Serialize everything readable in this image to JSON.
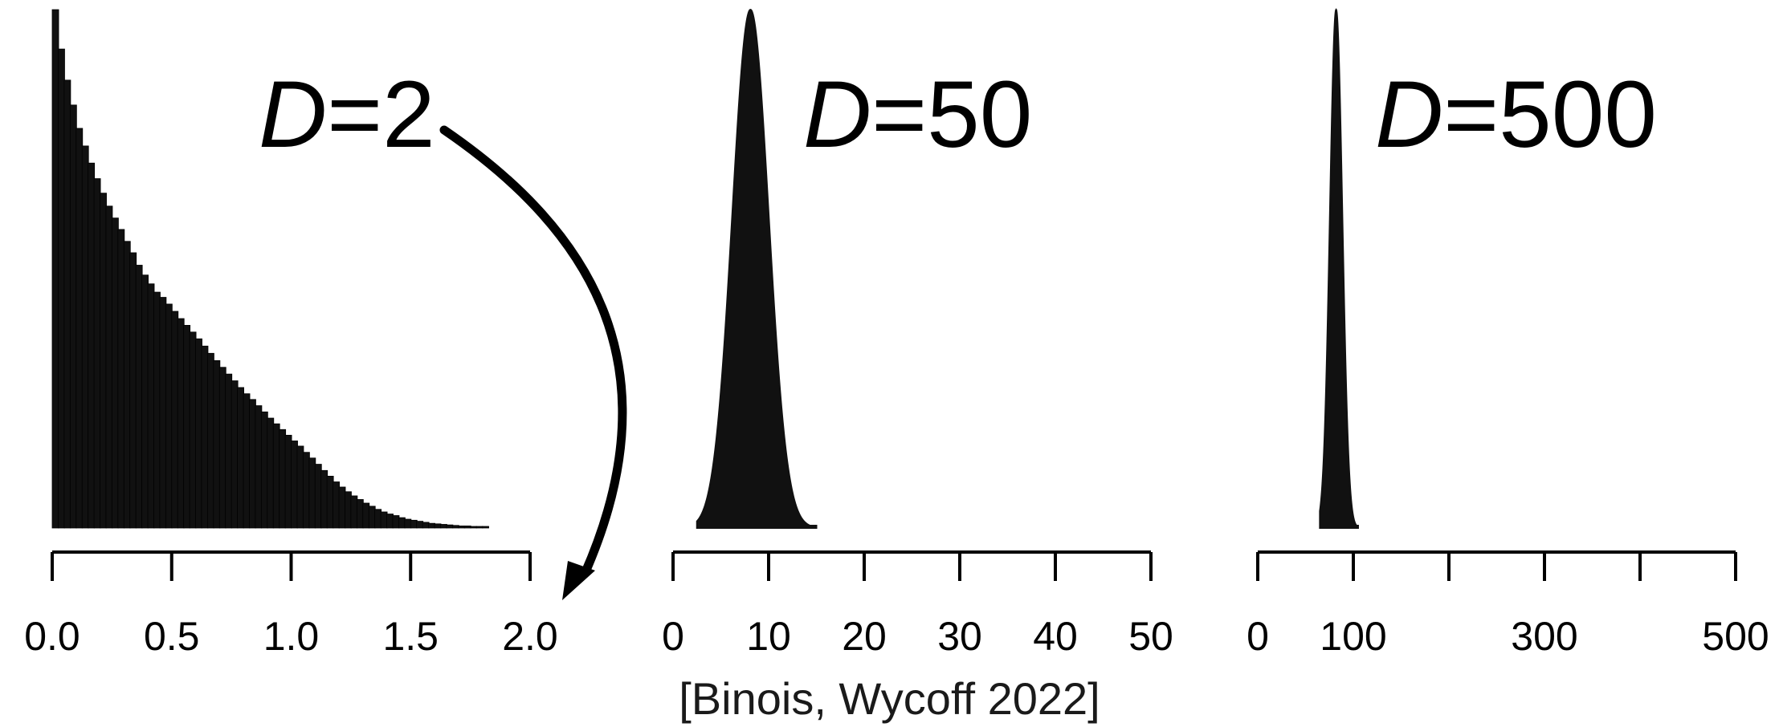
{
  "citation": "[Binois, Wycoff 2022]",
  "colors": {
    "bars": "#111111",
    "axis": "#000000",
    "text": "#000000"
  },
  "chart_data": [
    {
      "type": "bar",
      "title": "",
      "label_var": "D",
      "label_rest": "=2",
      "xlim": [
        0,
        2.0
      ],
      "xticks": [
        0,
        0.5,
        1.0,
        1.5,
        2.0
      ],
      "xtick_labels": [
        "0.0",
        "0.5",
        "1.0",
        "1.5",
        "2.0"
      ],
      "bin_width": 0.025,
      "x_start": 0,
      "values": [
        1.0,
        0.924,
        0.864,
        0.816,
        0.771,
        0.737,
        0.704,
        0.674,
        0.646,
        0.621,
        0.598,
        0.576,
        0.553,
        0.531,
        0.507,
        0.488,
        0.471,
        0.455,
        0.445,
        0.432,
        0.418,
        0.404,
        0.391,
        0.378,
        0.365,
        0.351,
        0.337,
        0.323,
        0.31,
        0.297,
        0.284,
        0.271,
        0.259,
        0.248,
        0.236,
        0.224,
        0.212,
        0.201,
        0.19,
        0.179,
        0.168,
        0.158,
        0.146,
        0.135,
        0.123,
        0.111,
        0.1,
        0.089,
        0.079,
        0.07,
        0.062,
        0.055,
        0.048,
        0.042,
        0.036,
        0.031,
        0.027,
        0.024,
        0.02,
        0.017,
        0.015,
        0.013,
        0.011,
        0.009,
        0.008,
        0.007,
        0.006,
        0.005,
        0.004,
        0.004,
        0.003,
        0.003,
        0.002
      ]
    },
    {
      "type": "area",
      "title": "",
      "label_var": "D",
      "label_rest": "=50",
      "xlim": [
        0,
        50
      ],
      "xticks": [
        0,
        10,
        20,
        30,
        40,
        50
      ],
      "xtick_labels": [
        "0",
        "10",
        "20",
        "30",
        "40",
        "50"
      ],
      "distribution": {
        "center": 8.1,
        "sigma": 1.9,
        "range": [
          2.5,
          15
        ]
      }
    },
    {
      "type": "area",
      "title": "",
      "label_var": "D",
      "label_rest": "=500",
      "xlim": [
        0,
        500
      ],
      "xticks": [
        0,
        100,
        200,
        300,
        400,
        500
      ],
      "xtick_labels": [
        "0",
        "100",
        "",
        "300",
        "",
        "500"
      ],
      "distribution": {
        "center": 82,
        "sigma": 6.5,
        "range": [
          65,
          105
        ]
      }
    }
  ]
}
